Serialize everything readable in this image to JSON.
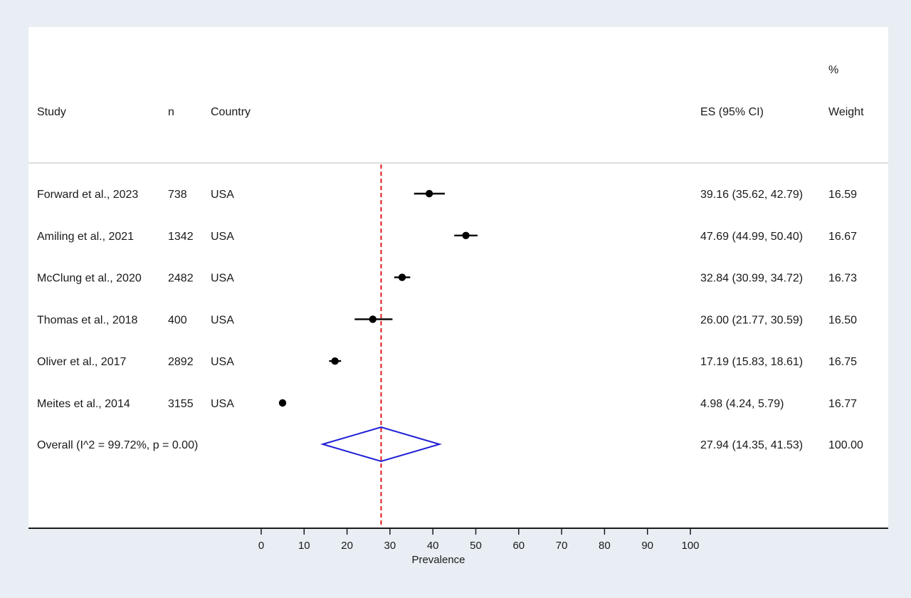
{
  "chart_data": {
    "type": "forest",
    "headers": {
      "study": "Study",
      "n": "n",
      "country": "Country",
      "es": "ES (95% CI)",
      "weight_top": "%",
      "weight": "Weight"
    },
    "studies": [
      {
        "study": "Forward et al., 2023",
        "n": "738",
        "country": "USA",
        "es": 39.16,
        "lower": 35.62,
        "upper": 42.79,
        "es_label": "39.16 (35.62, 42.79)",
        "weight": "16.59"
      },
      {
        "study": "Amiling et al., 2021",
        "n": "1342",
        "country": "USA",
        "es": 47.69,
        "lower": 44.99,
        "upper": 50.4,
        "es_label": "47.69 (44.99, 50.40)",
        "weight": "16.67"
      },
      {
        "study": "McClung et al., 2020",
        "n": "2482",
        "country": "USA",
        "es": 32.84,
        "lower": 30.99,
        "upper": 34.72,
        "es_label": "32.84 (30.99, 34.72)",
        "weight": "16.73"
      },
      {
        "study": "Thomas et al., 2018",
        "n": "400",
        "country": "USA",
        "es": 26.0,
        "lower": 21.77,
        "upper": 30.59,
        "es_label": "26.00 (21.77, 30.59)",
        "weight": "16.50"
      },
      {
        "study": "Oliver et al., 2017",
        "n": "2892",
        "country": "USA",
        "es": 17.19,
        "lower": 15.83,
        "upper": 18.61,
        "es_label": "17.19 (15.83, 18.61)",
        "weight": "16.75"
      },
      {
        "study": "Meites et al., 2014",
        "n": "3155",
        "country": "USA",
        "es": 4.98,
        "lower": 4.24,
        "upper": 5.79,
        "es_label": "4.98 (4.24, 5.79)",
        "weight": "16.77"
      }
    ],
    "overall": {
      "label": "Overall  (I^2 = 99.72%, p = 0.00)",
      "es": 27.94,
      "lower": 14.35,
      "upper": 41.53,
      "es_label": "27.94 (14.35, 41.53)",
      "weight": "100.00"
    },
    "xlabel": "Prevalence",
    "xlim": [
      0,
      100
    ],
    "xticks": [
      0,
      10,
      20,
      30,
      40,
      50,
      60,
      70,
      80,
      90,
      100
    ],
    "colors": {
      "overall_line": "#e31a1c",
      "diamond": "#1f1fd6",
      "marker": "#000000"
    }
  }
}
